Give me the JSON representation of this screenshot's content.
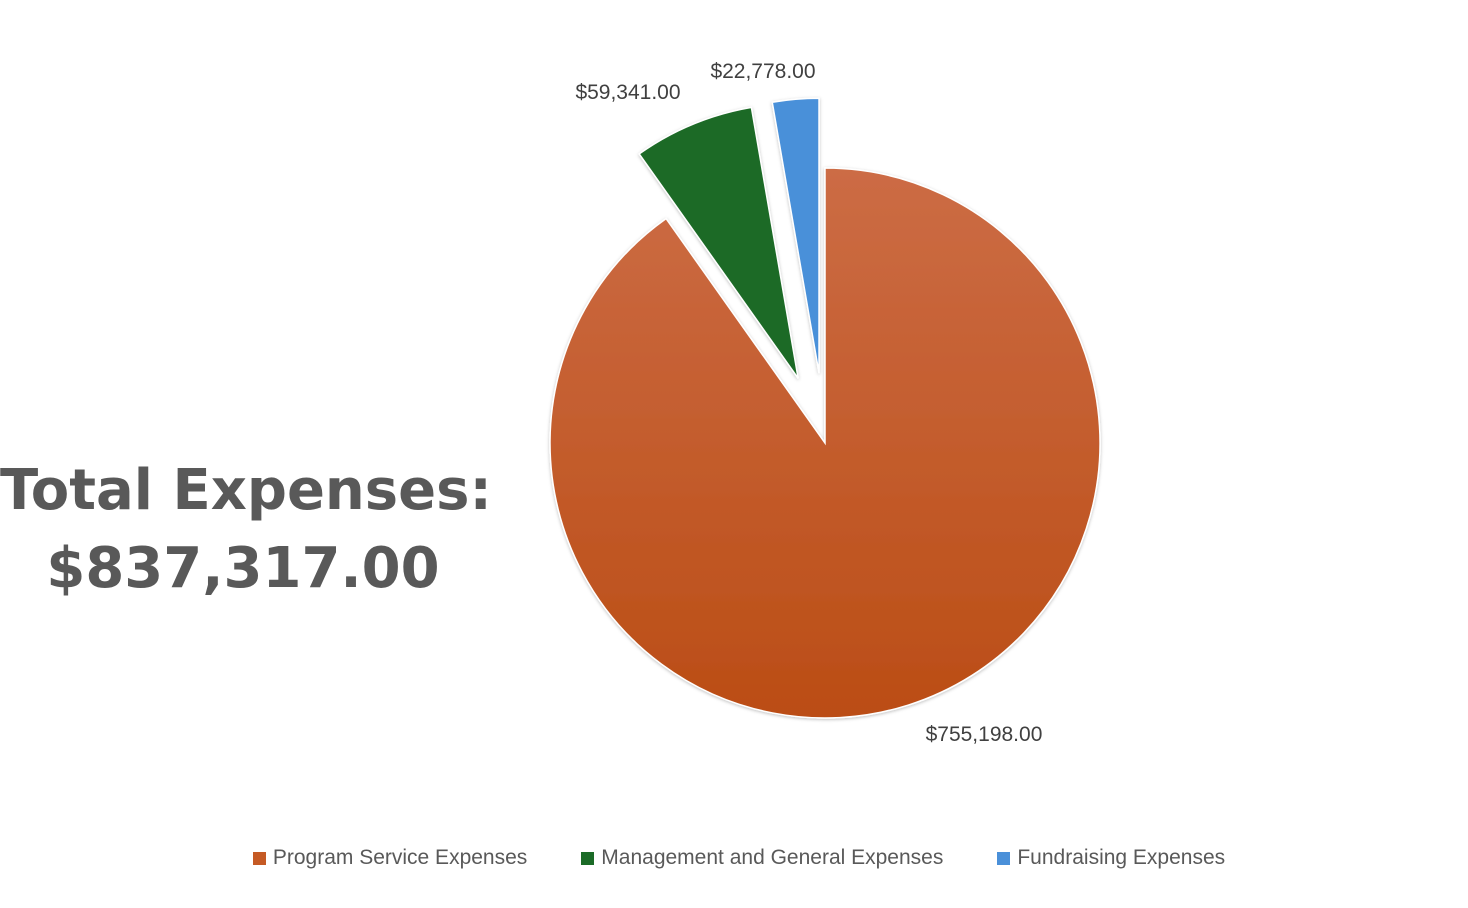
{
  "summary": {
    "line1": "Total Expenses:",
    "line2": "$837,317.00"
  },
  "chart_data": {
    "type": "pie",
    "title": "",
    "categories": [
      "Program Service Expenses",
      "Management and General Expenses",
      "Fundraising Expenses"
    ],
    "values": [
      755198,
      59341,
      22778
    ],
    "labels": [
      "$755,198.00",
      "$59,341.00",
      "$22,778.00"
    ],
    "colors": [
      "#c55a24",
      "#1b6b27",
      "#4a90d9"
    ],
    "exploded": [
      false,
      true,
      true
    ],
    "legend": "bottom"
  }
}
